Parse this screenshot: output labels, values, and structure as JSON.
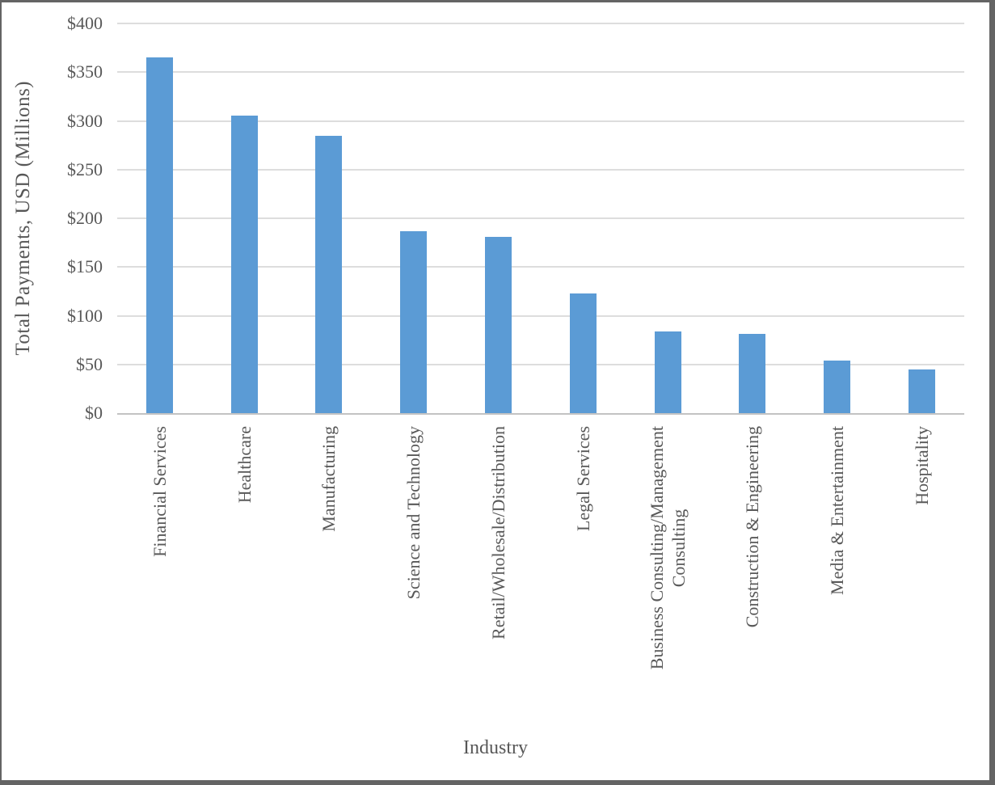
{
  "chart_data": {
    "type": "bar",
    "title": "",
    "xlabel": "Industry",
    "ylabel": "Total Payments, USD (Millions)",
    "categories": [
      "Financial Services",
      "Healthcare",
      "Manufacturing",
      "Science and Technology",
      "Retail/Wholesale/Distribution",
      "Legal Services",
      "Business Consulting/Management\nConsulting",
      "Construction & Engineering",
      "Media & Entertainment",
      "Hospitality"
    ],
    "values": [
      365,
      305,
      285,
      187,
      181,
      123,
      84,
      81,
      54,
      45
    ],
    "ylim": [
      0,
      400
    ],
    "yticks": [
      {
        "value": 400,
        "label": "$400"
      },
      {
        "value": 350,
        "label": "$350"
      },
      {
        "value": 300,
        "label": "$300"
      },
      {
        "value": 250,
        "label": "$250"
      },
      {
        "value": 200,
        "label": "$200"
      },
      {
        "value": 150,
        "label": "$150"
      },
      {
        "value": 100,
        "label": "$100"
      },
      {
        "value": 50,
        "label": "$50"
      },
      {
        "value": 0,
        "label": "$0"
      }
    ],
    "grid": true,
    "legend": "none",
    "colors": {
      "bar": "#5b9bd5",
      "gridline": "#dddddd",
      "axis_line": "#c3c3c3",
      "text": "#595959",
      "frame_border": "#646464"
    }
  }
}
